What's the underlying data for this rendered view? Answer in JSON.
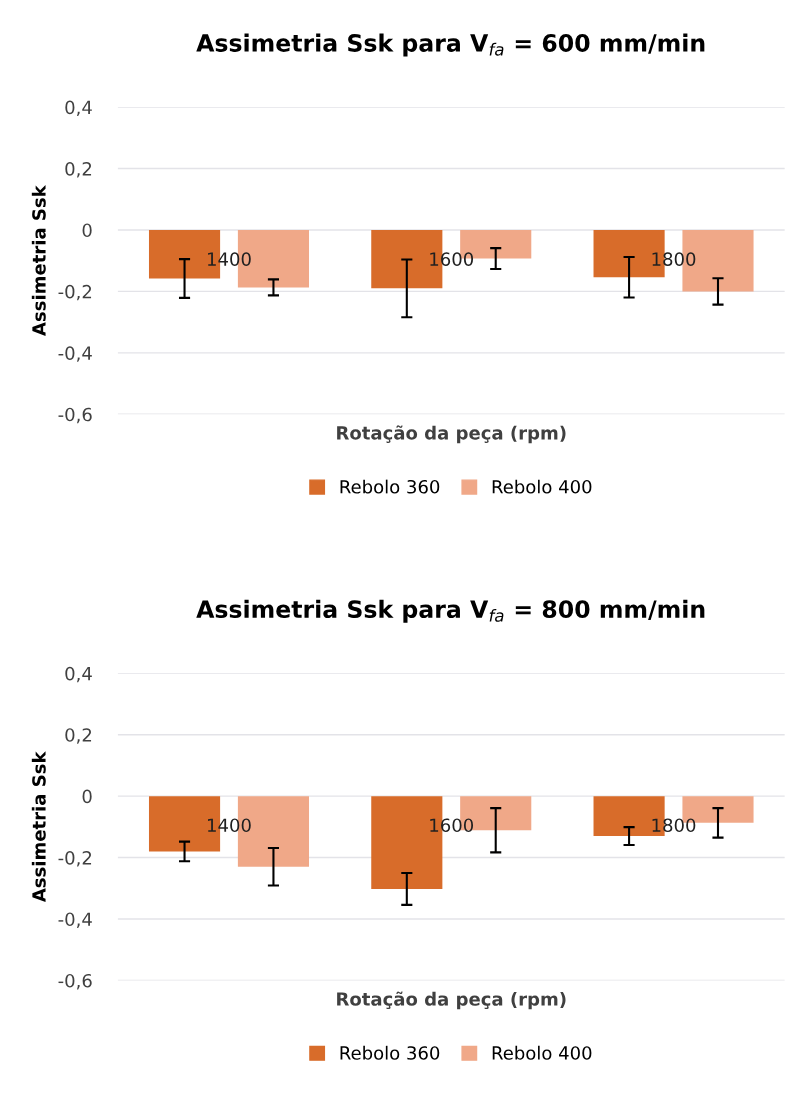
{
  "chart_data": [
    {
      "type": "bar",
      "title": "Assimetria Ssk para V$_{fa}$ = 600 mm/min",
      "xlabel": "Rotação da peça (rpm)",
      "ylabel": "Assimetria Ssk",
      "categories": [
        "1400",
        "1600",
        "1800"
      ],
      "series": [
        {
          "name": "Rebolo 360",
          "color": "#d86c2a",
          "values": [
            -0.158,
            -0.19,
            -0.154
          ],
          "errors": [
            0.063,
            0.094,
            0.066
          ]
        },
        {
          "name": "Rebolo 400",
          "color": "#f0a888",
          "values": [
            -0.187,
            -0.093,
            -0.2
          ],
          "errors": [
            0.026,
            0.034,
            0.043
          ]
        }
      ],
      "ylim": [
        -0.6,
        0.4
      ],
      "yticks": [
        {
          "value": -0.6,
          "label": "-0,6"
        },
        {
          "value": -0.4,
          "label": "-0,4"
        },
        {
          "value": -0.2,
          "label": "-0,2"
        },
        0,
        {
          "value": 0.2,
          "label": "0,2"
        },
        {
          "value": 0.4,
          "label": "0,4"
        }
      ],
      "grid": "y",
      "legend": "bottom"
    },
    {
      "type": "bar",
      "title": "Assimetria Ssk para V$_{fa}$ = 800 mm/min",
      "xlabel": "Rotação da peça (rpm)",
      "ylabel": "Assimetria Ssk",
      "categories": [
        "1400",
        "1600",
        "1800"
      ],
      "series": [
        {
          "name": "Rebolo 360",
          "color": "#d86c2a",
          "values": [
            -0.18,
            -0.302,
            -0.13
          ],
          "errors": [
            0.032,
            0.052,
            0.029
          ]
        },
        {
          "name": "Rebolo 400",
          "color": "#f0a888",
          "values": [
            -0.23,
            -0.111,
            -0.087
          ],
          "errors": [
            0.061,
            0.072,
            0.048
          ]
        }
      ],
      "ylim": [
        -0.6,
        0.4
      ],
      "yticks": [
        {
          "value": -0.6,
          "label": "-0,6"
        },
        {
          "value": -0.4,
          "label": "-0,4"
        },
        {
          "value": -0.2,
          "label": "-0,2"
        },
        0,
        {
          "value": 0.2,
          "label": "0,2"
        },
        {
          "value": 0.4,
          "label": "0,4"
        }
      ],
      "grid": "y",
      "legend": "bottom"
    }
  ]
}
